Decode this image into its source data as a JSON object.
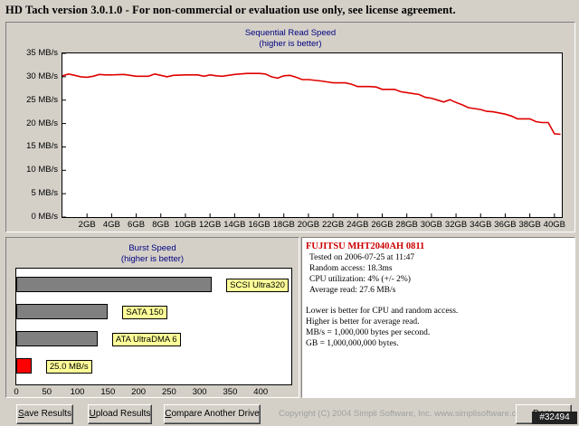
{
  "window": {
    "title": "HD Tach version 3.0.1.0  - For non-commercial or evaluation use only, see license agreement."
  },
  "read_chart": {
    "title_line1": "Sequential Read Speed",
    "title_line2": "(higher is better)"
  },
  "burst_chart": {
    "title_line1": "Burst Speed",
    "title_line2": "(higher is better)"
  },
  "chart_data": [
    {
      "type": "line",
      "title": "Sequential Read Speed (higher is better)",
      "xlabel": "",
      "ylabel": "",
      "x_unit": "GB",
      "y_unit": "MB/s",
      "xlim": [
        0,
        40.6
      ],
      "ylim": [
        0,
        35
      ],
      "grid": false,
      "y_ticks": [
        "0 MB/s",
        "5 MB/s",
        "10 MB/s",
        "15 MB/s",
        "20 MB/s",
        "25 MB/s",
        "30 MB/s",
        "35 MB/s"
      ],
      "y_tick_values": [
        0,
        5,
        10,
        15,
        20,
        25,
        30,
        35
      ],
      "x_ticks": [
        "2GB",
        "4GB",
        "6GB",
        "8GB",
        "10GB",
        "12GB",
        "14GB",
        "16GB",
        "18GB",
        "20GB",
        "22GB",
        "24GB",
        "26GB",
        "28GB",
        "30GB",
        "32GB",
        "34GB",
        "36GB",
        "38GB",
        "40GB"
      ],
      "x_tick_values": [
        2,
        4,
        6,
        8,
        10,
        12,
        14,
        16,
        18,
        20,
        22,
        24,
        26,
        28,
        30,
        32,
        34,
        36,
        38,
        40
      ],
      "color": "#e00000",
      "x": [
        0,
        0.5,
        1,
        1.5,
        2,
        2.5,
        3,
        3.5,
        4,
        5,
        5.5,
        6,
        7,
        7.5,
        8,
        8.5,
        9,
        10,
        11,
        11.5,
        12,
        12.5,
        13,
        14,
        15,
        16,
        16.5,
        17,
        17.5,
        18,
        18.5,
        19,
        19.5,
        20,
        21,
        21.5,
        22,
        23,
        23.5,
        24,
        25,
        25.5,
        26,
        27,
        27.5,
        28,
        29,
        29.5,
        30,
        30.5,
        31,
        31.5,
        32,
        32.5,
        33,
        34,
        34.5,
        35,
        36,
        36.5,
        37,
        38,
        38.5,
        39,
        39.5,
        40,
        40.5
      ],
      "y": [
        30.2,
        30.6,
        30.3,
        30.0,
        29.9,
        30.1,
        30.5,
        30.4,
        30.4,
        30.5,
        30.3,
        30.1,
        30.1,
        30.6,
        30.3,
        30.0,
        30.3,
        30.4,
        30.4,
        30.1,
        30.4,
        30.2,
        30.1,
        30.5,
        30.7,
        30.7,
        30.6,
        30.0,
        29.7,
        30.2,
        30.3,
        29.9,
        29.4,
        29.4,
        29.1,
        28.9,
        28.7,
        28.7,
        28.4,
        27.9,
        27.9,
        27.8,
        27.3,
        27.3,
        26.8,
        26.6,
        26.2,
        25.6,
        25.4,
        25.0,
        24.6,
        25.1,
        24.5,
        24.0,
        23.4,
        23.0,
        22.6,
        22.5,
        22.0,
        21.6,
        21.0,
        21.0,
        20.4,
        20.2,
        20.2,
        17.8,
        17.7
      ]
    },
    {
      "type": "bar",
      "orientation": "horizontal",
      "title": "Burst Speed (higher is better)",
      "xlim": [
        0,
        450
      ],
      "grid": false,
      "x_ticks": [
        "0",
        "50",
        "100",
        "150",
        "200",
        "250",
        "300",
        "350",
        "400"
      ],
      "x_tick_values": [
        0,
        50,
        100,
        150,
        200,
        250,
        300,
        350,
        400
      ],
      "categories": [
        "SCSI Ultra320",
        "SATA 150",
        "ATA UltraDMA 6",
        "25.0 MB/s"
      ],
      "values": [
        320,
        150,
        133,
        25
      ],
      "colors": [
        "#808080",
        "#808080",
        "#808080",
        "#ff0000"
      ]
    }
  ],
  "info": {
    "drive_name": "FUJITSU MHT2040AH 0811",
    "lines": [
      "Tested on 2006-07-25 at 11:47",
      "Random access: 18.3ms",
      "CPU utilization: 4% (+/- 2%)",
      "Average read: 27.6 MB/s"
    ],
    "notes": [
      "Lower is better for CPU and random access.",
      "Higher is better for average read.",
      "MB/s = 1,000,000 bytes per second.",
      "GB = 1,000,000,000 bytes."
    ]
  },
  "buttons": {
    "save": {
      "first": "S",
      "rest": "ave Results"
    },
    "upload": {
      "first": "U",
      "rest": "pload Results"
    },
    "compare": {
      "first": "C",
      "rest": "ompare Another Drive"
    },
    "done": {
      "first": "D",
      "rest": "one"
    }
  },
  "copyright": "Copyright (C) 2004 Simpli Software, Inc. www.simplisoftware.com",
  "watermark": "#32494"
}
